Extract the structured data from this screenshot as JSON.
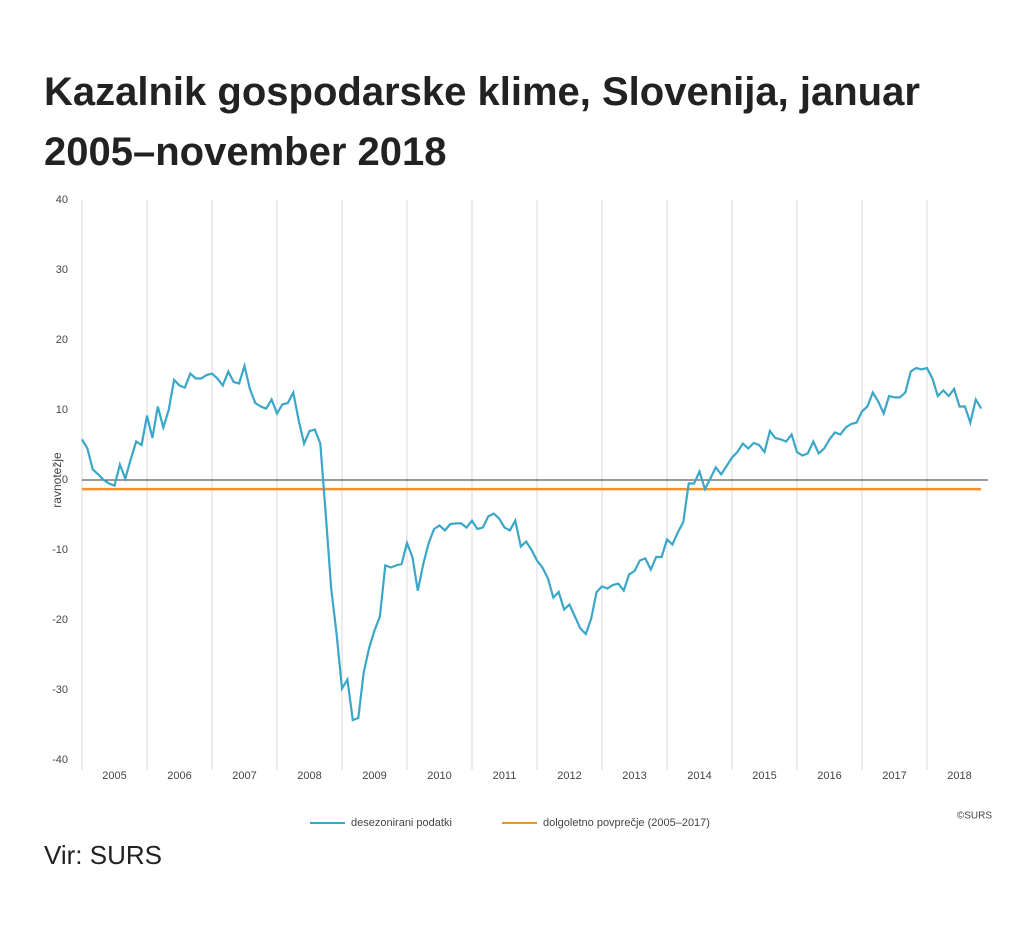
{
  "title": "Kazalnik gospodarske klime, Slovenija, januar 2005–november 2018",
  "source": "Vir: SURS",
  "chart_data": {
    "type": "line",
    "ylabel": "ravnotežje",
    "credit": "©SURS",
    "xticks": [
      "2005",
      "2006",
      "2007",
      "2008",
      "2009",
      "2010",
      "2011",
      "2012",
      "2013",
      "2014",
      "2015",
      "2016",
      "2017",
      "2018"
    ],
    "ylim": [
      -40,
      40
    ],
    "yticks": [
      40,
      30,
      20,
      10,
      0,
      -10,
      -20,
      -30,
      -40
    ],
    "series": [
      {
        "name": "desezonirani podatki",
        "color": "#3aa6c8",
        "values": [
          5.8,
          4.5,
          1.5,
          0.8,
          0,
          -0.5,
          -0.8,
          2.2,
          0.2,
          3,
          5.5,
          5,
          9.2,
          6,
          10.5,
          7.5,
          10,
          14.3,
          13.5,
          13.2,
          15.2,
          14.5,
          14.5,
          15,
          15.2,
          14.5,
          13.5,
          15.5,
          14,
          13.8,
          16.3,
          13,
          11,
          10.5,
          10.2,
          11.5,
          9.5,
          10.8,
          11,
          12.5,
          8.5,
          5.2,
          7,
          7.2,
          5.2,
          -5,
          -15.5,
          -22,
          -29.8,
          -28.5,
          -34.3,
          -34,
          -27.5,
          -24,
          -21.5,
          -19.5,
          -12.2,
          -12.5,
          -12.2,
          -12,
          -9,
          -11,
          -15.8,
          -12,
          -9,
          -7,
          -6.5,
          -7.2,
          -6.3,
          -6.2,
          -6.2,
          -6.8,
          -5.8,
          -7,
          -6.8,
          -5.2,
          -4.8,
          -5.5,
          -6.8,
          -7.2,
          -5.8,
          -9.5,
          -8.8,
          -10,
          -11.5,
          -12.5,
          -14,
          -16.8,
          -16,
          -18.5,
          -17.8,
          -19.5,
          -21.2,
          -22,
          -19.8,
          -16,
          -15.2,
          -15.5,
          -15,
          -14.8,
          -15.8,
          -13.5,
          -13,
          -11.5,
          -11.2,
          -12.8,
          -11,
          -11,
          -8.5,
          -9.2,
          -7.5,
          -6,
          -0.5,
          -0.5,
          1.2,
          -1.3,
          0.2,
          1.8,
          0.8,
          2,
          3.2,
          4,
          5.2,
          4.5,
          5.3,
          5,
          4,
          7,
          6,
          5.8,
          5.5,
          6.5,
          4,
          3.5,
          3.8,
          5.5,
          3.8,
          4.5,
          5.8,
          6.8,
          6.5,
          7.5,
          8,
          8.2,
          9.8,
          10.5,
          12.5,
          11.2,
          9.5,
          12,
          11.8,
          11.8,
          12.5,
          15.5,
          16,
          15.8,
          16,
          14.5,
          12,
          12.8,
          12,
          13,
          10.5,
          10.5,
          8.2,
          11.5,
          10.2
        ]
      },
      {
        "name": "dolgoletno povprečje (2005–2017)",
        "color": "#f0922e",
        "value": -1.3
      }
    ]
  }
}
